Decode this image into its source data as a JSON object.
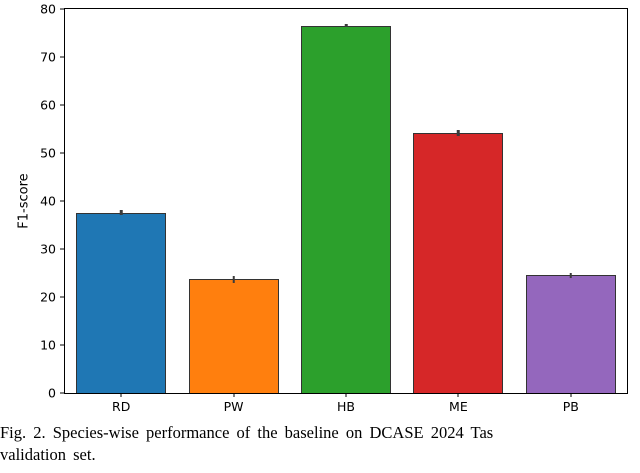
{
  "chart_data": {
    "type": "bar",
    "categories": [
      "RD",
      "PW",
      "HB",
      "ME",
      "PB"
    ],
    "values": [
      37.6,
      23.7,
      76.5,
      54.2,
      24.5
    ],
    "errors": [
      0.5,
      0.7,
      0.3,
      0.6,
      0.6
    ],
    "colors": [
      "#1f77b4",
      "#ff7f0e",
      "#2ca02c",
      "#d62728",
      "#9467bd"
    ],
    "title": "",
    "xlabel": "",
    "ylabel": "F1-score",
    "ylim": [
      0,
      80
    ],
    "yticks": [
      0,
      10,
      20,
      30,
      40,
      50,
      60,
      70,
      80
    ],
    "grid": false,
    "legend": "none",
    "bar_edge_color": "#333333",
    "error_bar_color": "#3b3b3b"
  },
  "caption": {
    "line1": "Fig. 2.   Species-wise performance of the baseline on DCASE 2024 Tas",
    "line2": "validation set."
  }
}
